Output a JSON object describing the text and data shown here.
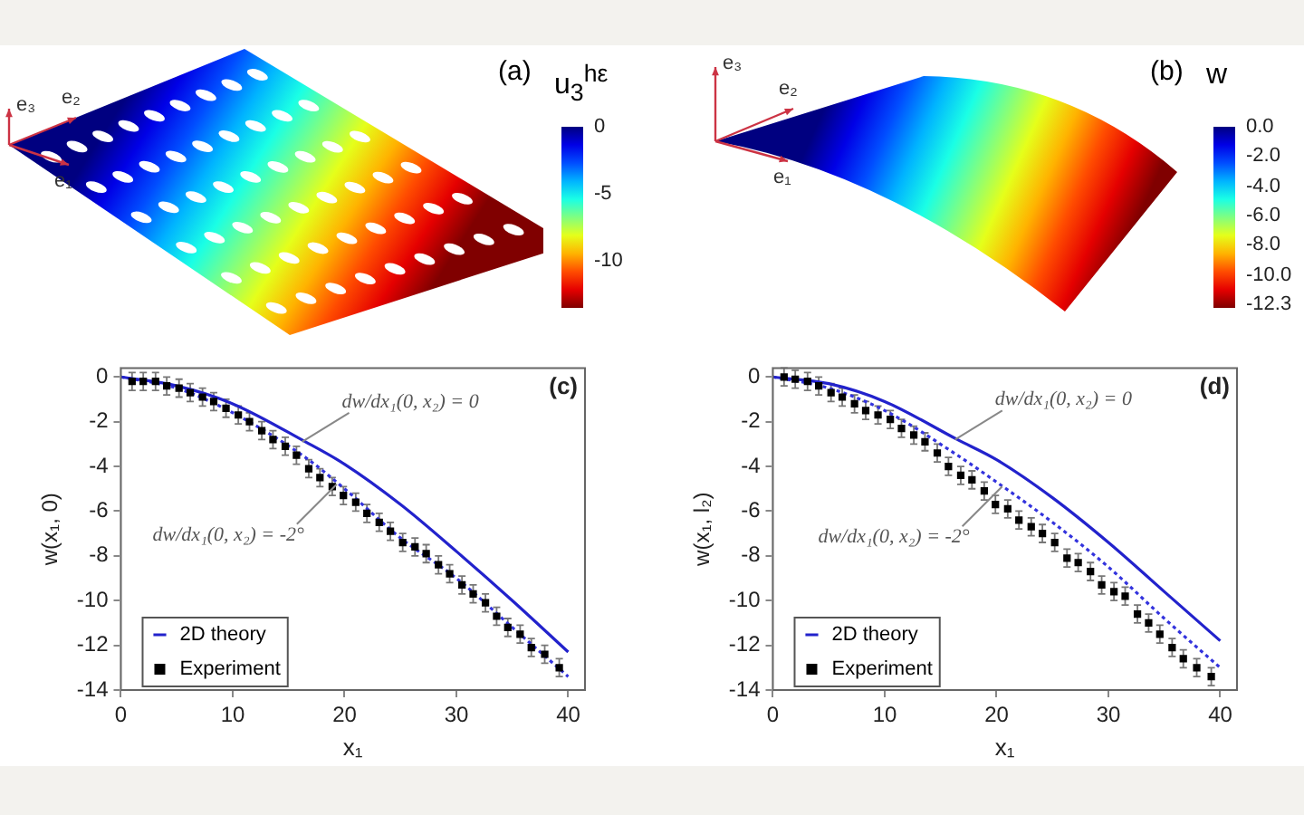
{
  "chart_data": [
    {
      "type": "other",
      "title": "(a)",
      "clabel": "u$_{3}$$^{hε}$",
      "annotations": [
        "e₃",
        "e₂",
        "e₁",
        "0",
        "-5",
        "-10"
      ]
    },
    {
      "type": "other",
      "title": "(b)",
      "clabel": "w",
      "annotations": [
        "e₃",
        "e₂",
        "e₁",
        "0.0",
        "-2.0",
        "-4.0",
        "-6.0",
        "-8.0",
        "-10.0",
        "-12.3"
      ]
    },
    {
      "type": "line",
      "title": "(c)",
      "xlabel": "x₁",
      "ylabel": "w(x₁, 0)",
      "xlim": [
        0,
        41.5
      ],
      "ylim": [
        -14,
        0.4
      ],
      "xticks": [
        0,
        10,
        20,
        30,
        40
      ],
      "yticks": [
        0,
        -2,
        -4,
        -6,
        -8,
        -10,
        -12,
        -14
      ],
      "grid": false,
      "legend": "bottom left",
      "annotations": [
        {
          "text": "dw/dx₁(0, x₂) = 0",
          "x": 16.2,
          "y": -2.9
        },
        {
          "text": "dw/dx₁(0, x₂) = -2°",
          "x": 19.3,
          "y": -4.8
        }
      ],
      "series": [
        {
          "name": "2D theory",
          "type": "line",
          "color": "#2222cc",
          "line_style": "solid",
          "x": [
            0,
            5,
            10,
            16.5,
            20,
            25,
            30,
            35,
            40
          ],
          "values": [
            0,
            -0.4,
            -1.2,
            -2.9,
            -3.9,
            -5.7,
            -7.8,
            -10.0,
            -12.3
          ]
        },
        {
          "type": "line",
          "color": "#3333dd",
          "line_style": "dotted",
          "x": [
            0,
            5,
            10,
            16.5,
            20,
            25,
            30,
            35,
            40
          ],
          "values": [
            0,
            -0.5,
            -1.6,
            -3.6,
            -5.0,
            -7.2,
            -9.0,
            -11.2,
            -13.4
          ]
        },
        {
          "name": "Experiment",
          "type": "scatter",
          "color": "#000000",
          "marker": "square",
          "x": [
            1.0,
            2.0,
            3.1,
            4.1,
            5.2,
            6.2,
            7.3,
            8.3,
            9.4,
            10.5,
            11.5,
            12.6,
            13.6,
            14.7,
            15.7,
            16.8,
            17.8,
            18.9,
            19.9,
            21.0,
            22.0,
            23.1,
            24.1,
            25.2,
            26.3,
            27.3,
            28.4,
            29.4,
            30.5,
            31.5,
            32.6,
            33.6,
            34.6,
            35.7,
            36.7,
            37.9,
            39.2
          ],
          "values": [
            -0.2,
            -0.2,
            -0.2,
            -0.4,
            -0.5,
            -0.7,
            -0.9,
            -1.1,
            -1.4,
            -1.7,
            -2.0,
            -2.4,
            -2.8,
            -3.1,
            -3.5,
            -4.1,
            -4.5,
            -4.9,
            -5.3,
            -5.6,
            -6.1,
            -6.5,
            -6.9,
            -7.4,
            -7.6,
            -7.9,
            -8.4,
            -8.8,
            -9.3,
            -9.7,
            -10.1,
            -10.7,
            -11.2,
            -11.5,
            -12.1,
            -12.4,
            -13.0
          ],
          "errors": [
            0.4,
            0.4,
            0.4,
            0.4,
            0.4,
            0.4,
            0.4,
            0.4,
            0.4,
            0.4,
            0.4,
            0.4,
            0.4,
            0.4,
            0.4,
            0.4,
            0.4,
            0.4,
            0.4,
            0.4,
            0.4,
            0.4,
            0.4,
            0.4,
            0.4,
            0.4,
            0.4,
            0.4,
            0.4,
            0.4,
            0.4,
            0.4,
            0.4,
            0.4,
            0.4,
            0.4,
            0.4
          ]
        }
      ]
    },
    {
      "type": "line",
      "title": "(d)",
      "xlabel": "x₁",
      "ylabel": "w(x₁, l₂)",
      "xlim": [
        0,
        41.5
      ],
      "ylim": [
        -14,
        0.4
      ],
      "xticks": [
        0,
        10,
        20,
        30,
        40
      ],
      "yticks": [
        0,
        -2,
        -4,
        -6,
        -8,
        -10,
        -12,
        -14
      ],
      "grid": false,
      "legend": "bottom left",
      "annotations": [
        {
          "text": "dw/dx₁(0, x₂) = 0",
          "x": 16.3,
          "y": -2.8
        },
        {
          "text": "dw/dx₁(0, x₂) = -2°",
          "x": 20.5,
          "y": -4.9
        }
      ],
      "series": [
        {
          "name": "2D theory",
          "type": "line",
          "color": "#2222cc",
          "line_style": "solid",
          "x": [
            0,
            5,
            10,
            16.5,
            20,
            25,
            30,
            35,
            40
          ],
          "values": [
            0,
            -0.3,
            -1.1,
            -2.8,
            -3.7,
            -5.4,
            -7.4,
            -9.6,
            -11.8
          ]
        },
        {
          "type": "line",
          "color": "#3333dd",
          "line_style": "dotted",
          "x": [
            0,
            5,
            10,
            16.5,
            20,
            25,
            30,
            35,
            40
          ],
          "values": [
            0,
            -0.5,
            -1.5,
            -3.5,
            -4.7,
            -6.5,
            -8.5,
            -10.8,
            -13.0
          ]
        },
        {
          "name": "Experiment",
          "type": "scatter",
          "color": "#000000",
          "marker": "square",
          "x": [
            1.0,
            2.0,
            3.1,
            4.1,
            5.2,
            6.2,
            7.3,
            8.3,
            9.4,
            10.5,
            11.5,
            12.6,
            13.6,
            14.7,
            15.7,
            16.8,
            17.8,
            18.9,
            19.9,
            21.0,
            22.0,
            23.1,
            24.1,
            25.2,
            26.3,
            27.3,
            28.4,
            29.4,
            30.5,
            31.5,
            32.6,
            33.6,
            34.6,
            35.7,
            36.7,
            37.9,
            39.2
          ],
          "values": [
            0.0,
            -0.1,
            -0.2,
            -0.4,
            -0.7,
            -0.9,
            -1.2,
            -1.5,
            -1.7,
            -1.9,
            -2.3,
            -2.6,
            -2.9,
            -3.4,
            -4.0,
            -4.4,
            -4.6,
            -5.1,
            -5.7,
            -5.9,
            -6.4,
            -6.7,
            -7.0,
            -7.4,
            -8.1,
            -8.3,
            -8.7,
            -9.3,
            -9.6,
            -9.8,
            -10.6,
            -11.0,
            -11.5,
            -12.1,
            -12.6,
            -13.0,
            -13.4
          ],
          "errors": [
            0.4,
            0.4,
            0.4,
            0.4,
            0.4,
            0.4,
            0.4,
            0.4,
            0.4,
            0.4,
            0.4,
            0.4,
            0.4,
            0.4,
            0.4,
            0.4,
            0.4,
            0.4,
            0.4,
            0.4,
            0.4,
            0.4,
            0.4,
            0.4,
            0.4,
            0.4,
            0.4,
            0.4,
            0.4,
            0.4,
            0.4,
            0.4,
            0.4,
            0.4,
            0.4,
            0.4,
            0.4
          ]
        }
      ]
    }
  ]
}
